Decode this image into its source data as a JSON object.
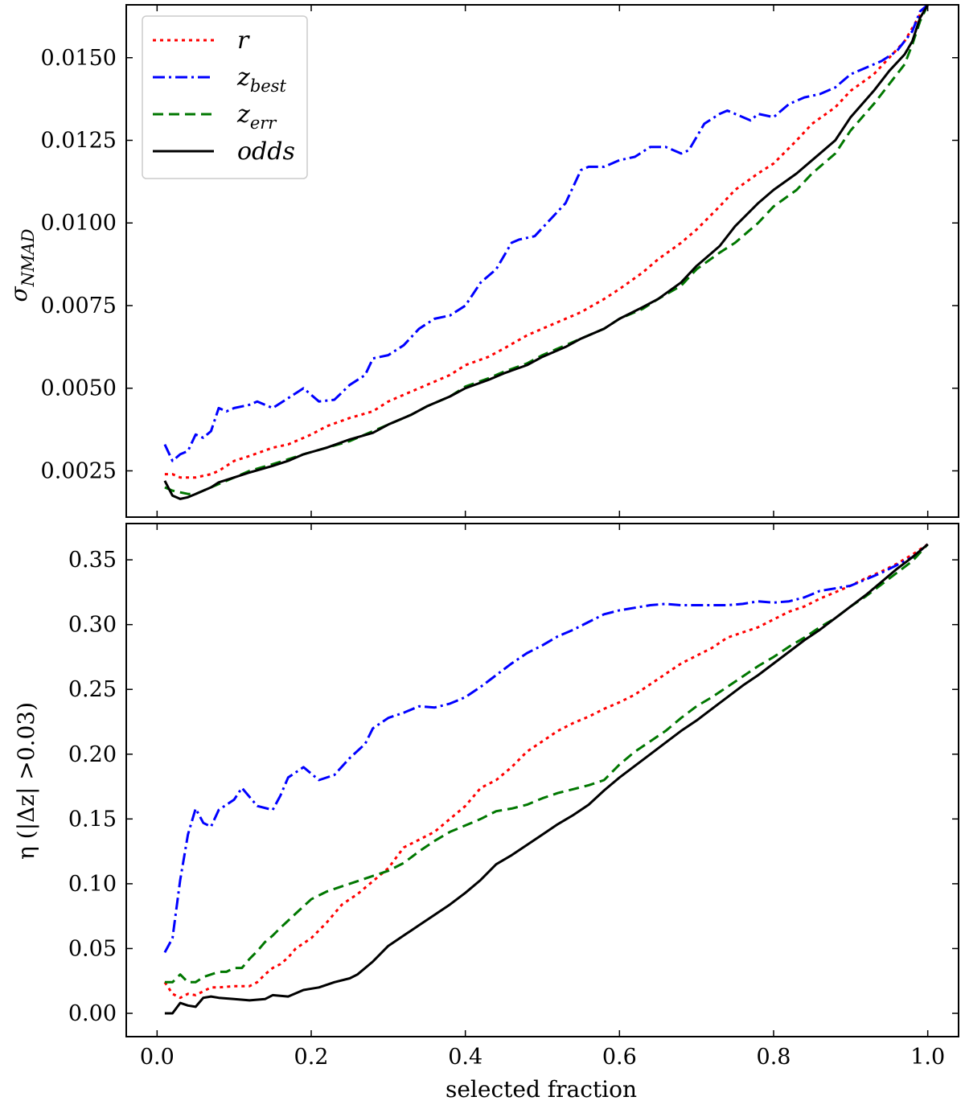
{
  "chart_data": [
    {
      "type": "line",
      "panel": "top",
      "title": "",
      "xlabel": "",
      "ylabel": "σ",
      "ylabel_sub": "NMAD",
      "xlim": [
        -0.04,
        1.04
      ],
      "ylim": [
        0.0011,
        0.0166
      ],
      "xticks": [
        0.0,
        0.2,
        0.4,
        0.6,
        0.8,
        1.0
      ],
      "xtick_labels": [
        "",
        "",
        "",
        "",
        "",
        ""
      ],
      "yticks": [
        0.0025,
        0.005,
        0.0075,
        0.01,
        0.0125,
        0.015
      ],
      "ytick_labels": [
        "0.0025",
        "0.0050",
        "0.0075",
        "0.0100",
        "0.0125",
        "0.0150"
      ],
      "legend": {
        "placement": "top-left",
        "entries": [
          {
            "base": "r",
            "sub": ""
          },
          {
            "base": "z",
            "sub": "best"
          },
          {
            "base": "z",
            "sub": "err"
          },
          {
            "base": "odds",
            "sub": ""
          }
        ]
      },
      "series": [
        {
          "name": "r",
          "color": "#ff0000",
          "style": "dotted",
          "x": [
            0.01,
            0.02,
            0.03,
            0.05,
            0.07,
            0.08,
            0.1,
            0.12,
            0.15,
            0.17,
            0.2,
            0.22,
            0.25,
            0.28,
            0.3,
            0.33,
            0.35,
            0.38,
            0.4,
            0.43,
            0.45,
            0.48,
            0.5,
            0.53,
            0.55,
            0.58,
            0.6,
            0.63,
            0.65,
            0.68,
            0.7,
            0.73,
            0.75,
            0.78,
            0.8,
            0.83,
            0.85,
            0.88,
            0.9,
            0.93,
            0.95,
            0.97,
            0.98,
            0.99,
            1.0
          ],
          "y": [
            0.0024,
            0.0024,
            0.0023,
            0.0023,
            0.0024,
            0.0025,
            0.0028,
            0.00295,
            0.0032,
            0.0033,
            0.0036,
            0.00385,
            0.0041,
            0.0043,
            0.0046,
            0.0049,
            0.0051,
            0.0054,
            0.0057,
            0.00595,
            0.0062,
            0.0066,
            0.0068,
            0.0071,
            0.0073,
            0.0077,
            0.008,
            0.0085,
            0.0089,
            0.0094,
            0.0098,
            0.0105,
            0.011,
            0.0115,
            0.0118,
            0.0125,
            0.013,
            0.0135,
            0.014,
            0.0145,
            0.015,
            0.0155,
            0.0159,
            0.0163,
            0.0166
          ]
        },
        {
          "name": "zbest",
          "color": "#0000ff",
          "style": "dashdot",
          "x": [
            0.01,
            0.02,
            0.03,
            0.04,
            0.05,
            0.06,
            0.07,
            0.08,
            0.09,
            0.1,
            0.12,
            0.13,
            0.15,
            0.17,
            0.19,
            0.21,
            0.23,
            0.25,
            0.27,
            0.28,
            0.3,
            0.32,
            0.34,
            0.36,
            0.38,
            0.4,
            0.42,
            0.44,
            0.46,
            0.47,
            0.49,
            0.51,
            0.53,
            0.55,
            0.56,
            0.58,
            0.6,
            0.62,
            0.64,
            0.66,
            0.68,
            0.69,
            0.71,
            0.73,
            0.74,
            0.75,
            0.77,
            0.78,
            0.8,
            0.82,
            0.84,
            0.86,
            0.88,
            0.9,
            0.92,
            0.94,
            0.96,
            0.98,
            0.99,
            1.0
          ],
          "y": [
            0.0033,
            0.0028,
            0.003,
            0.0031,
            0.0036,
            0.0035,
            0.0037,
            0.0044,
            0.0043,
            0.0044,
            0.0045,
            0.0046,
            0.0044,
            0.0047,
            0.005,
            0.0046,
            0.00465,
            0.0051,
            0.0054,
            0.0059,
            0.006,
            0.0063,
            0.0068,
            0.0071,
            0.0072,
            0.0075,
            0.0082,
            0.0086,
            0.0094,
            0.0095,
            0.0096,
            0.0101,
            0.0106,
            0.0116,
            0.0117,
            0.0117,
            0.0119,
            0.012,
            0.0123,
            0.0123,
            0.0121,
            0.0122,
            0.013,
            0.0133,
            0.0134,
            0.0133,
            0.0131,
            0.0133,
            0.0132,
            0.0136,
            0.0138,
            0.0139,
            0.0141,
            0.0145,
            0.0147,
            0.0149,
            0.0152,
            0.0158,
            0.0164,
            0.0166
          ]
        },
        {
          "name": "zerr",
          "color": "#007700",
          "style": "dashed",
          "x": [
            0.01,
            0.02,
            0.03,
            0.04,
            0.05,
            0.07,
            0.08,
            0.1,
            0.12,
            0.15,
            0.17,
            0.19,
            0.22,
            0.25,
            0.28,
            0.3,
            0.33,
            0.35,
            0.38,
            0.4,
            0.43,
            0.45,
            0.48,
            0.5,
            0.53,
            0.55,
            0.58,
            0.6,
            0.63,
            0.65,
            0.68,
            0.7,
            0.73,
            0.75,
            0.78,
            0.8,
            0.83,
            0.85,
            0.88,
            0.9,
            0.93,
            0.95,
            0.97,
            0.98,
            0.99,
            1.0
          ],
          "y": [
            0.002,
            0.0019,
            0.00185,
            0.0018,
            0.0018,
            0.002,
            0.0021,
            0.0023,
            0.0025,
            0.0027,
            0.00285,
            0.003,
            0.0032,
            0.0034,
            0.0037,
            0.0039,
            0.0042,
            0.00445,
            0.00475,
            0.00505,
            0.0053,
            0.0055,
            0.00575,
            0.006,
            0.0063,
            0.0065,
            0.0068,
            0.0071,
            0.0074,
            0.0077,
            0.0081,
            0.0086,
            0.0091,
            0.0094,
            0.01,
            0.0105,
            0.011,
            0.0115,
            0.0121,
            0.0128,
            0.0136,
            0.0142,
            0.0148,
            0.0154,
            0.0161,
            0.0166
          ]
        },
        {
          "name": "odds",
          "color": "#000000",
          "style": "solid",
          "x": [
            0.01,
            0.02,
            0.03,
            0.04,
            0.05,
            0.06,
            0.07,
            0.08,
            0.1,
            0.12,
            0.15,
            0.17,
            0.19,
            0.22,
            0.25,
            0.28,
            0.3,
            0.33,
            0.35,
            0.38,
            0.4,
            0.43,
            0.45,
            0.48,
            0.5,
            0.53,
            0.55,
            0.58,
            0.6,
            0.63,
            0.65,
            0.68,
            0.7,
            0.73,
            0.75,
            0.78,
            0.8,
            0.83,
            0.85,
            0.88,
            0.9,
            0.93,
            0.95,
            0.97,
            0.98,
            0.99,
            1.0
          ],
          "y": [
            0.0022,
            0.00175,
            0.00165,
            0.0017,
            0.0018,
            0.0019,
            0.002,
            0.00215,
            0.0023,
            0.00245,
            0.00265,
            0.0028,
            0.003,
            0.0032,
            0.00345,
            0.00365,
            0.0039,
            0.0042,
            0.00445,
            0.00475,
            0.005,
            0.00525,
            0.00545,
            0.0057,
            0.00595,
            0.00625,
            0.0065,
            0.0068,
            0.0071,
            0.00745,
            0.0077,
            0.0082,
            0.0087,
            0.0093,
            0.0099,
            0.0106,
            0.011,
            0.0115,
            0.0119,
            0.0125,
            0.0132,
            0.014,
            0.0146,
            0.0151,
            0.0155,
            0.0162,
            0.0166
          ]
        }
      ]
    },
    {
      "type": "line",
      "panel": "bottom",
      "title": "",
      "xlabel": "selected fraction",
      "ylabel": "η (|Δz| >0.03)",
      "xlim": [
        -0.04,
        1.04
      ],
      "ylim": [
        -0.018,
        0.378
      ],
      "xticks": [
        0.0,
        0.2,
        0.4,
        0.6,
        0.8,
        1.0
      ],
      "xtick_labels": [
        "0.0",
        "0.2",
        "0.4",
        "0.6",
        "0.8",
        "1.0"
      ],
      "yticks": [
        0.0,
        0.05,
        0.1,
        0.15,
        0.2,
        0.25,
        0.3,
        0.35
      ],
      "ytick_labels": [
        "0.00",
        "0.05",
        "0.10",
        "0.15",
        "0.20",
        "0.25",
        "0.30",
        "0.35"
      ],
      "series": [
        {
          "name": "r",
          "color": "#ff0000",
          "style": "dotted",
          "x": [
            0.01,
            0.02,
            0.03,
            0.04,
            0.05,
            0.06,
            0.07,
            0.08,
            0.1,
            0.12,
            0.13,
            0.14,
            0.15,
            0.16,
            0.17,
            0.18,
            0.2,
            0.22,
            0.24,
            0.26,
            0.28,
            0.3,
            0.32,
            0.34,
            0.36,
            0.38,
            0.4,
            0.42,
            0.44,
            0.46,
            0.48,
            0.5,
            0.52,
            0.54,
            0.56,
            0.58,
            0.6,
            0.62,
            0.64,
            0.66,
            0.68,
            0.7,
            0.72,
            0.74,
            0.76,
            0.78,
            0.8,
            0.82,
            0.84,
            0.86,
            0.88,
            0.9,
            0.92,
            0.94,
            0.96,
            0.98,
            1.0
          ],
          "y": [
            0.024,
            0.015,
            0.012,
            0.015,
            0.014,
            0.017,
            0.02,
            0.02,
            0.021,
            0.021,
            0.024,
            0.03,
            0.035,
            0.038,
            0.043,
            0.05,
            0.058,
            0.07,
            0.084,
            0.092,
            0.102,
            0.112,
            0.128,
            0.134,
            0.14,
            0.15,
            0.16,
            0.174,
            0.18,
            0.19,
            0.202,
            0.21,
            0.218,
            0.224,
            0.229,
            0.235,
            0.24,
            0.246,
            0.254,
            0.262,
            0.27,
            0.276,
            0.282,
            0.29,
            0.294,
            0.298,
            0.304,
            0.31,
            0.314,
            0.32,
            0.325,
            0.33,
            0.336,
            0.341,
            0.347,
            0.354,
            0.362
          ]
        },
        {
          "name": "zbest",
          "color": "#0000ff",
          "style": "dashdot",
          "x": [
            0.01,
            0.02,
            0.03,
            0.04,
            0.05,
            0.06,
            0.07,
            0.08,
            0.1,
            0.11,
            0.13,
            0.15,
            0.16,
            0.17,
            0.19,
            0.21,
            0.23,
            0.25,
            0.27,
            0.28,
            0.3,
            0.32,
            0.34,
            0.36,
            0.38,
            0.4,
            0.42,
            0.44,
            0.46,
            0.48,
            0.5,
            0.52,
            0.54,
            0.56,
            0.58,
            0.6,
            0.62,
            0.64,
            0.66,
            0.68,
            0.7,
            0.72,
            0.74,
            0.76,
            0.78,
            0.8,
            0.82,
            0.84,
            0.86,
            0.88,
            0.9,
            0.92,
            0.94,
            0.96,
            0.98,
            1.0
          ],
          "y": [
            0.047,
            0.058,
            0.103,
            0.138,
            0.158,
            0.147,
            0.144,
            0.157,
            0.165,
            0.174,
            0.16,
            0.157,
            0.168,
            0.182,
            0.19,
            0.18,
            0.184,
            0.197,
            0.208,
            0.22,
            0.228,
            0.232,
            0.237,
            0.236,
            0.239,
            0.244,
            0.252,
            0.261,
            0.27,
            0.278,
            0.284,
            0.291,
            0.296,
            0.302,
            0.308,
            0.311,
            0.313,
            0.315,
            0.316,
            0.315,
            0.315,
            0.315,
            0.315,
            0.316,
            0.318,
            0.317,
            0.318,
            0.321,
            0.326,
            0.328,
            0.33,
            0.335,
            0.34,
            0.346,
            0.352,
            0.362
          ]
        },
        {
          "name": "zerr",
          "color": "#007700",
          "style": "dashed",
          "x": [
            0.01,
            0.02,
            0.03,
            0.04,
            0.05,
            0.06,
            0.07,
            0.08,
            0.09,
            0.1,
            0.11,
            0.12,
            0.13,
            0.14,
            0.15,
            0.16,
            0.18,
            0.2,
            0.22,
            0.24,
            0.26,
            0.28,
            0.3,
            0.32,
            0.34,
            0.36,
            0.38,
            0.4,
            0.42,
            0.44,
            0.46,
            0.48,
            0.5,
            0.52,
            0.54,
            0.56,
            0.58,
            0.6,
            0.62,
            0.64,
            0.66,
            0.68,
            0.7,
            0.72,
            0.74,
            0.76,
            0.78,
            0.8,
            0.82,
            0.84,
            0.86,
            0.88,
            0.9,
            0.92,
            0.94,
            0.96,
            0.98,
            1.0
          ],
          "y": [
            0.024,
            0.024,
            0.03,
            0.024,
            0.024,
            0.028,
            0.03,
            0.032,
            0.032,
            0.035,
            0.035,
            0.042,
            0.048,
            0.055,
            0.06,
            0.066,
            0.077,
            0.088,
            0.094,
            0.098,
            0.102,
            0.106,
            0.11,
            0.116,
            0.125,
            0.133,
            0.14,
            0.145,
            0.15,
            0.156,
            0.158,
            0.161,
            0.166,
            0.17,
            0.173,
            0.176,
            0.18,
            0.192,
            0.202,
            0.21,
            0.218,
            0.228,
            0.237,
            0.244,
            0.252,
            0.26,
            0.268,
            0.275,
            0.283,
            0.29,
            0.298,
            0.305,
            0.314,
            0.322,
            0.331,
            0.34,
            0.349,
            0.362
          ]
        },
        {
          "name": "odds",
          "color": "#000000",
          "style": "solid",
          "x": [
            0.01,
            0.02,
            0.03,
            0.04,
            0.05,
            0.06,
            0.07,
            0.08,
            0.1,
            0.12,
            0.14,
            0.15,
            0.17,
            0.19,
            0.21,
            0.23,
            0.25,
            0.26,
            0.28,
            0.3,
            0.32,
            0.34,
            0.36,
            0.38,
            0.4,
            0.42,
            0.44,
            0.46,
            0.48,
            0.5,
            0.52,
            0.54,
            0.56,
            0.58,
            0.6,
            0.62,
            0.64,
            0.66,
            0.68,
            0.7,
            0.72,
            0.74,
            0.76,
            0.78,
            0.8,
            0.82,
            0.84,
            0.86,
            0.88,
            0.9,
            0.92,
            0.94,
            0.96,
            0.98,
            1.0
          ],
          "y": [
            0.0,
            0.0,
            0.008,
            0.006,
            0.005,
            0.012,
            0.013,
            0.012,
            0.011,
            0.01,
            0.011,
            0.014,
            0.013,
            0.018,
            0.02,
            0.024,
            0.027,
            0.03,
            0.04,
            0.052,
            0.06,
            0.068,
            0.076,
            0.084,
            0.093,
            0.103,
            0.115,
            0.122,
            0.13,
            0.138,
            0.146,
            0.153,
            0.161,
            0.172,
            0.182,
            0.191,
            0.2,
            0.209,
            0.218,
            0.226,
            0.235,
            0.244,
            0.253,
            0.261,
            0.27,
            0.279,
            0.288,
            0.296,
            0.305,
            0.314,
            0.323,
            0.333,
            0.343,
            0.352,
            0.362
          ]
        }
      ]
    }
  ]
}
